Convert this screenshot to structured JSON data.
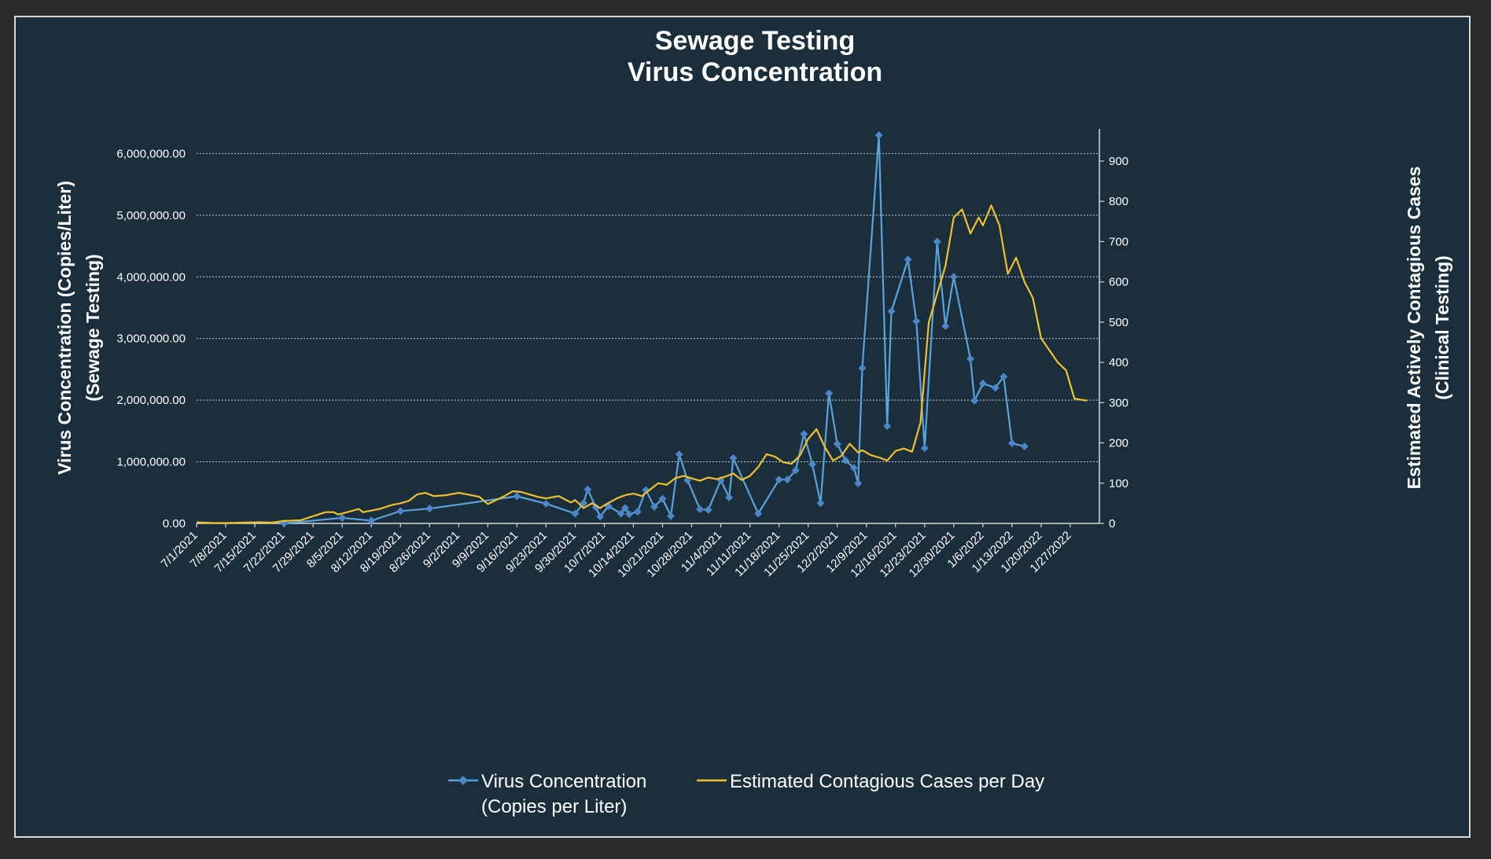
{
  "chart_data": {
    "type": "line",
    "title": [
      "Sewage Testing",
      "Virus Concentration"
    ],
    "ylabel": [
      "Virus Concentration (Copies/Liter)",
      "(Sewage Testing)"
    ],
    "y2label": [
      "Estimated Actively Contagious Cases",
      "(Clinical Testing)"
    ],
    "ylim": [
      0,
      6400000
    ],
    "y2lim": [
      0,
      980
    ],
    "y_ticks": [
      0,
      1000000,
      2000000,
      3000000,
      4000000,
      5000000,
      6000000
    ],
    "y_tick_labels": [
      "0.00",
      "1,000,000.00",
      "2,000,000.00",
      "3,000,000.00",
      "4,000,000.00",
      "5,000,000.00",
      "6,000,000.00"
    ],
    "y2_ticks": [
      0,
      100,
      200,
      300,
      400,
      500,
      600,
      700,
      800,
      900
    ],
    "y2_tick_labels": [
      "0",
      "100",
      "200",
      "300",
      "400",
      "500",
      "600",
      "700",
      "800",
      "900"
    ],
    "x_start": "7/1/2021",
    "x_end": "2/3/2022",
    "x_ticks": [
      "7/1/2021",
      "7/8/2021",
      "7/15/2021",
      "7/22/2021",
      "7/29/2021",
      "8/5/2021",
      "8/12/2021",
      "8/19/2021",
      "8/26/2021",
      "9/2/2021",
      "9/9/2021",
      "9/16/2021",
      "9/23/2021",
      "9/30/2021",
      "10/7/2021",
      "10/14/2021",
      "10/21/2021",
      "10/28/2021",
      "11/4/2021",
      "11/11/2021",
      "11/18/2021",
      "11/25/2021",
      "12/2/2021",
      "12/9/2021",
      "12/16/2021",
      "12/23/2021",
      "12/30/2021",
      "1/6/2022",
      "1/13/2022",
      "1/20/2022",
      "1/27/2022"
    ],
    "grid": "horizontal",
    "legend": "bottom-center",
    "colors": {
      "virus": "#5ba3dd",
      "cases": "#f0c02d",
      "background": "#1b2e3c"
    },
    "series": [
      {
        "name": "Virus Concentration (Copies per Liter)",
        "axis": "left",
        "marker": "diamond",
        "points": [
          [
            "7/22/2021",
            0
          ],
          [
            "8/5/2021",
            90000
          ],
          [
            "8/12/2021",
            45000
          ],
          [
            "8/19/2021",
            200000
          ],
          [
            "8/26/2021",
            240000
          ],
          [
            "9/16/2021",
            440000
          ],
          [
            "9/23/2021",
            320000
          ],
          [
            "9/30/2021",
            160000
          ],
          [
            "10/2/2021",
            330000
          ],
          [
            "10/3/2021",
            550000
          ],
          [
            "10/5/2021",
            260000
          ],
          [
            "10/6/2021",
            110000
          ],
          [
            "10/8/2021",
            280000
          ],
          [
            "10/11/2021",
            160000
          ],
          [
            "10/12/2021",
            250000
          ],
          [
            "10/13/2021",
            150000
          ],
          [
            "10/15/2021",
            190000
          ],
          [
            "10/17/2021",
            540000
          ],
          [
            "10/19/2021",
            270000
          ],
          [
            "10/21/2021",
            400000
          ],
          [
            "10/23/2021",
            120000
          ],
          [
            "10/25/2021",
            1120000
          ],
          [
            "10/27/2021",
            700000
          ],
          [
            "10/30/2021",
            230000
          ],
          [
            "11/1/2021",
            220000
          ],
          [
            "11/4/2021",
            700000
          ],
          [
            "11/6/2021",
            420000
          ],
          [
            "11/7/2021",
            1060000
          ],
          [
            "11/13/2021",
            160000
          ],
          [
            "11/18/2021",
            710000
          ],
          [
            "11/20/2021",
            710000
          ],
          [
            "11/22/2021",
            860000
          ],
          [
            "11/24/2021",
            1450000
          ],
          [
            "11/26/2021",
            960000
          ],
          [
            "11/28/2021",
            330000
          ],
          [
            "11/30/2021",
            2110000
          ],
          [
            "12/2/2021",
            1290000
          ],
          [
            "12/4/2021",
            1020000
          ],
          [
            "12/6/2021",
            900000
          ],
          [
            "12/7/2021",
            650000
          ],
          [
            "12/8/2021",
            2520000
          ],
          [
            "12/12/2021",
            6300000
          ],
          [
            "12/14/2021",
            1580000
          ],
          [
            "12/15/2021",
            3440000
          ],
          [
            "12/19/2021",
            4280000
          ],
          [
            "12/21/2021",
            3280000
          ],
          [
            "12/23/2021",
            1220000
          ],
          [
            "12/26/2021",
            4570000
          ],
          [
            "12/28/2021",
            3200000
          ],
          [
            "12/30/2021",
            4000000
          ],
          [
            "1/3/2022",
            2670000
          ],
          [
            "1/4/2022",
            1990000
          ],
          [
            "1/6/2022",
            2270000
          ],
          [
            "1/9/2022",
            2200000
          ],
          [
            "1/11/2022",
            2380000
          ],
          [
            "1/13/2022",
            1300000
          ],
          [
            "1/16/2022",
            1250000
          ]
        ]
      },
      {
        "name": "Estimated Contagious Cases per Day",
        "axis": "right",
        "marker": "none",
        "points": [
          [
            "7/1/2021",
            3
          ],
          [
            "7/3/2021",
            2
          ],
          [
            "7/5/2021",
            1
          ],
          [
            "7/8/2021",
            1
          ],
          [
            "7/12/2021",
            2
          ],
          [
            "7/16/2021",
            3
          ],
          [
            "7/19/2021",
            2
          ],
          [
            "7/22/2021",
            6
          ],
          [
            "7/26/2021",
            8
          ],
          [
            "7/29/2021",
            18
          ],
          [
            "8/1/2021",
            28
          ],
          [
            "8/3/2021",
            28
          ],
          [
            "8/4/2021",
            22
          ],
          [
            "8/7/2021",
            30
          ],
          [
            "8/9/2021",
            36
          ],
          [
            "8/10/2021",
            28
          ],
          [
            "8/14/2021",
            36
          ],
          [
            "8/17/2021",
            46
          ],
          [
            "8/19/2021",
            50
          ],
          [
            "8/21/2021",
            56
          ],
          [
            "8/23/2021",
            72
          ],
          [
            "8/25/2021",
            76
          ],
          [
            "8/27/2021",
            68
          ],
          [
            "8/30/2021",
            70
          ],
          [
            "9/2/2021",
            76
          ],
          [
            "9/5/2021",
            70
          ],
          [
            "9/7/2021",
            66
          ],
          [
            "9/9/2021",
            48
          ],
          [
            "9/11/2021",
            58
          ],
          [
            "9/13/2021",
            68
          ],
          [
            "9/15/2021",
            80
          ],
          [
            "9/17/2021",
            78
          ],
          [
            "9/19/2021",
            72
          ],
          [
            "9/21/2021",
            66
          ],
          [
            "9/23/2021",
            62
          ],
          [
            "9/26/2021",
            68
          ],
          [
            "9/29/2021",
            52
          ],
          [
            "9/30/2021",
            58
          ],
          [
            "10/2/2021",
            38
          ],
          [
            "10/4/2021",
            50
          ],
          [
            "10/6/2021",
            38
          ],
          [
            "10/7/2021",
            45
          ],
          [
            "10/10/2021",
            62
          ],
          [
            "10/12/2021",
            70
          ],
          [
            "10/14/2021",
            74
          ],
          [
            "10/16/2021",
            68
          ],
          [
            "10/18/2021",
            84
          ],
          [
            "10/20/2021",
            100
          ],
          [
            "10/22/2021",
            96
          ],
          [
            "10/24/2021",
            112
          ],
          [
            "10/26/2021",
            118
          ],
          [
            "10/28/2021",
            112
          ],
          [
            "10/30/2021",
            106
          ],
          [
            "11/1/2021",
            114
          ],
          [
            "11/3/2021",
            110
          ],
          [
            "11/5/2021",
            116
          ],
          [
            "11/7/2021",
            124
          ],
          [
            "11/9/2021",
            108
          ],
          [
            "11/11/2021",
            118
          ],
          [
            "11/13/2021",
            140
          ],
          [
            "11/15/2021",
            172
          ],
          [
            "11/17/2021",
            166
          ],
          [
            "11/19/2021",
            152
          ],
          [
            "11/21/2021",
            148
          ],
          [
            "11/23/2021",
            168
          ],
          [
            "11/25/2021",
            210
          ],
          [
            "11/27/2021",
            234
          ],
          [
            "11/29/2021",
            190
          ],
          [
            "12/1/2021",
            156
          ],
          [
            "12/3/2021",
            168
          ],
          [
            "12/5/2021",
            198
          ],
          [
            "12/7/2021",
            176
          ],
          [
            "12/8/2021",
            182
          ],
          [
            "12/10/2021",
            170
          ],
          [
            "12/12/2021",
            164
          ],
          [
            "12/14/2021",
            156
          ],
          [
            "12/16/2021",
            180
          ],
          [
            "12/18/2021",
            186
          ],
          [
            "12/20/2021",
            178
          ],
          [
            "12/22/2021",
            250
          ],
          [
            "12/24/2021",
            500
          ],
          [
            "12/26/2021",
            570
          ],
          [
            "12/28/2021",
            640
          ],
          [
            "12/30/2021",
            760
          ],
          [
            "1/1/2022",
            780
          ],
          [
            "1/3/2022",
            720
          ],
          [
            "1/5/2022",
            760
          ],
          [
            "1/6/2022",
            740
          ],
          [
            "1/8/2022",
            790
          ],
          [
            "1/10/2022",
            740
          ],
          [
            "1/12/2022",
            620
          ],
          [
            "1/14/2022",
            660
          ],
          [
            "1/16/2022",
            600
          ],
          [
            "1/18/2022",
            560
          ],
          [
            "1/20/2022",
            460
          ],
          [
            "1/22/2022",
            430
          ],
          [
            "1/24/2022",
            400
          ],
          [
            "1/26/2022",
            380
          ],
          [
            "1/28/2022",
            310
          ],
          [
            "1/31/2022",
            305
          ]
        ]
      }
    ]
  }
}
